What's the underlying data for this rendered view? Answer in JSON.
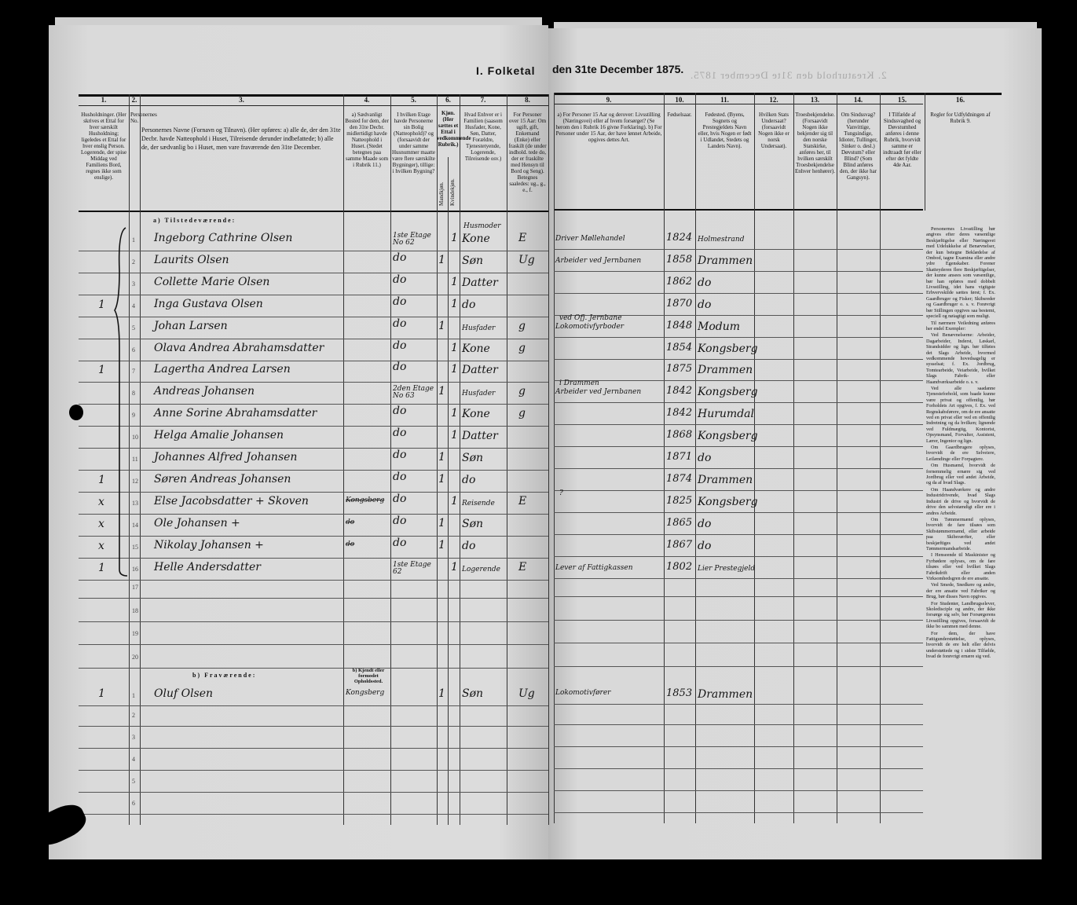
{
  "header": {
    "title_left": "I. Folketal",
    "title_right": "den 31te December 1875.",
    "ghost_text": "2. Kreaturhold den 31te December 1875."
  },
  "columns": [
    {
      "num": "1.",
      "text": "Husholdninger. (Her skrives et Ettal for hver særskilt Husholdning; ligeledes et Ettal for hver enslig Person. Logerende, der spise Middag ved Familiens Bord, regnes ikke som enslige)."
    },
    {
      "num": "2.",
      "text": "Personernes No."
    },
    {
      "num": "3.",
      "text": "Personernes Navne (Fornavn og Tilnavn). (Her opføres: a) alle de, der den 31te Decbr. havde Natteophold i Huset, Tilreisende derunder indbefattede; b) alle de, der sædvanlig bo i Huset, men vare fraværende den 31te December."
    },
    {
      "num": "4.",
      "text": "a) Sædvanligt Bosted for dem, der den 31te Decbr. midlertidigt havde Natteophold i Huset. (Stedet betegnes paa samme Maade som i Rubrik 11.)"
    },
    {
      "num": "5.",
      "text": "I hvilken Etage havde Personerne sin Bolig (Natteophold)? og (forsaavidt der under samme Husnummer maatte være flere særskilte Bygninger), tillige: i hvilken Bygning?"
    },
    {
      "num": "6.",
      "text": "Kjøn. (Her sættes et Ettal i vedkommende Rubrik.)",
      "sub": [
        "Mandkjøn.",
        "Kvindekjøn."
      ]
    },
    {
      "num": "7.",
      "text": "Hvad Enhver er i Familien (saasom Husfader, Kone, Søn, Datter, Forældre, Tjenestetyende, Logerende, Tilreisende osv.)"
    },
    {
      "num": "8.",
      "text": "For Personer over 15 Aar: Om ugift, gift, Enkemand (Enke) eller fraskilt (de under indhold. tede do, der er fraskilte med Hensyn til Bord og Seng). Betegnes saaledes: ug., g., e., f."
    },
    {
      "num": "9.",
      "text": "a) For Personer 15 Aar og derover: Livsstilling (Næringsvei) eller af hvem forsørget? (Se herom den i Rubrik 16 givne Forklaring). b) For Personer under 15 Aar, der have lønnet Arbeide, opgives dettes Art."
    },
    {
      "num": "10.",
      "text": "Fødselsaar."
    },
    {
      "num": "11.",
      "text": "Fødested. (Byens, Sognets og Prestegjeldets Navn eller, hvis Nogen er født i Udlandet, Stedets og Landets Navn)."
    },
    {
      "num": "12.",
      "text": "Hvilken Stats Undersaat? (forsaavidt Nogen ikke er norsk Undersaat)."
    },
    {
      "num": "13.",
      "text": "Troesbekjendelse. (Forsaavidt Nogen ikke bekjender sig til den norske Statskirke, anføres her, til hvilken særskilt Troesbekjendelse Enhver henhører)."
    },
    {
      "num": "14.",
      "text": "Om Sindssvag? (herunder Vanvittige, Tungsindige, Idioter, Tullinger, Sinker o. desl.) Døvstum? eller Blind? (Som Blind anføres den, der ikke har Gangsyn)."
    },
    {
      "num": "15.",
      "text": "I Tilfælde af Sindssvaghed og Døvstumhed anføres i denne Rubrik, hvorvidt samme er indtraadt før eller efter det fyldte 4de Aar."
    },
    {
      "num": "16.",
      "text": "Regler for Udfyldningen af Rubrik 9."
    }
  ],
  "sections": {
    "present": "a) Tilstedeværende:",
    "absent": "b) Fraværende:",
    "absent_col4": "b) Kjendt eller formodet Opholdssted."
  },
  "rows": [
    {
      "no": "1",
      "hh": "",
      "name": "Ingeborg Cathrine Olsen",
      "bosted": "",
      "etage": "1ste Etage No 62",
      "male": "",
      "female": "1",
      "role": "Kone",
      "role_note": "Husmoder",
      "civil": "E",
      "occupation": "Driver Møllehandel",
      "occ_note": "",
      "year": "1824",
      "place": "Holmestrand"
    },
    {
      "no": "2",
      "hh": "",
      "name": "Laurits Olsen",
      "bosted": "",
      "etage": "do",
      "male": "1",
      "female": "",
      "role": "Søn",
      "role_note": "",
      "civil": "Ug",
      "occupation": "Arbeider ved Jernbanen",
      "occ_note": "",
      "year": "1858",
      "place": "Drammen"
    },
    {
      "no": "3",
      "hh": "",
      "name": "Collette Marie Olsen",
      "bosted": "",
      "etage": "do",
      "male": "",
      "female": "1",
      "role": "Datter",
      "role_note": "",
      "civil": "",
      "occupation": "",
      "occ_note": "",
      "year": "1862",
      "place": "do"
    },
    {
      "no": "4",
      "hh": "1",
      "name": "Inga Gustava Olsen",
      "bosted": "",
      "etage": "do",
      "male": "",
      "female": "1",
      "role": "do",
      "role_note": "",
      "civil": "",
      "occupation": "",
      "occ_note": "",
      "year": "1870",
      "place": "do"
    },
    {
      "no": "5",
      "hh": "",
      "name": "Johan Larsen",
      "bosted": "",
      "etage": "do",
      "male": "1",
      "female": "",
      "role": "Husfader",
      "role_note": "",
      "civil": "g",
      "occupation": "Lokomotivfyrboder",
      "occ_note": "ved Ofj. Jernbane",
      "year": "1848",
      "place": "Modum"
    },
    {
      "no": "6",
      "hh": "",
      "name": "Olava Andrea Abrahamsdatter",
      "bosted": "",
      "etage": "do",
      "male": "",
      "female": "1",
      "role": "Kone",
      "role_note": "",
      "civil": "g",
      "occupation": "",
      "occ_note": "",
      "year": "1854",
      "place": "Kongsberg"
    },
    {
      "no": "7",
      "hh": "1",
      "name": "Lagertha Andrea Larsen",
      "bosted": "",
      "etage": "do",
      "male": "",
      "female": "1",
      "role": "Datter",
      "role_note": "",
      "civil": "",
      "occupation": "",
      "occ_note": "",
      "year": "1875",
      "place": "Drammen"
    },
    {
      "no": "8",
      "hh": "",
      "name": "Andreas Johansen",
      "bosted": "",
      "etage": "2den Etage No 63",
      "male": "1",
      "female": "",
      "role": "Husfader",
      "role_note": "",
      "civil": "g",
      "occupation": "Arbeider ved Jernbanen",
      "occ_note": "i Drammen",
      "year": "1842",
      "place": "Kongsberg"
    },
    {
      "no": "9",
      "hh": "",
      "name": "Anne Sorine Abrahamsdatter",
      "bosted": "",
      "etage": "do",
      "male": "",
      "female": "1",
      "role": "Kone",
      "role_note": "",
      "civil": "g",
      "occupation": "",
      "occ_note": "",
      "year": "1842",
      "place": "Hurumdal"
    },
    {
      "no": "10",
      "hh": "",
      "name": "Helga Amalie Johansen",
      "bosted": "",
      "etage": "do",
      "male": "",
      "female": "1",
      "role": "Datter",
      "role_note": "",
      "civil": "",
      "occupation": "",
      "occ_note": "",
      "year": "1868",
      "place": "Kongsberg"
    },
    {
      "no": "11",
      "hh": "",
      "name": "Johannes Alfred Johansen",
      "bosted": "",
      "etage": "do",
      "male": "1",
      "female": "",
      "role": "Søn",
      "role_note": "",
      "civil": "",
      "occupation": "",
      "occ_note": "",
      "year": "1871",
      "place": "do"
    },
    {
      "no": "12",
      "hh": "1",
      "name": "Søren Andreas Johansen",
      "bosted": "",
      "etage": "do",
      "male": "1",
      "female": "",
      "role": "do",
      "role_note": "",
      "civil": "",
      "occupation": "",
      "occ_note": "",
      "year": "1874",
      "place": "Drammen"
    },
    {
      "no": "13",
      "hh": "x",
      "name": "Else Jacobsdatter + Skoven",
      "bosted": "Kongsberg",
      "etage": "do",
      "male": "",
      "female": "1",
      "role": "Reisende",
      "role_note": "",
      "civil": "E",
      "occupation": "",
      "occ_note": "?",
      "year": "1825",
      "place": "Kongsberg"
    },
    {
      "no": "14",
      "hh": "x",
      "name": "Ole Johansen +",
      "bosted": "do",
      "etage": "do",
      "male": "1",
      "female": "",
      "role": "Søn",
      "role_note": "",
      "civil": "",
      "occupation": "",
      "occ_note": "",
      "year": "1865",
      "place": "do"
    },
    {
      "no": "15",
      "hh": "x",
      "name": "Nikolay Johansen +",
      "bosted": "do",
      "etage": "do",
      "male": "1",
      "female": "",
      "role": "do",
      "role_note": "",
      "civil": "",
      "occupation": "",
      "occ_note": "",
      "year": "1867",
      "place": "do"
    },
    {
      "no": "16",
      "hh": "1",
      "name": "Helle Andersdatter",
      "bosted": "",
      "etage": "1ste Etage 62",
      "male": "",
      "female": "1",
      "role": "Logerende",
      "role_note": "",
      "civil": "E",
      "occupation": "Lever af Fattigkassen",
      "occ_note": "",
      "year": "1802",
      "place": "Lier Prestegjeld"
    }
  ],
  "empty_row_numbers": [
    "17",
    "18",
    "19",
    "20"
  ],
  "absent_rows": [
    {
      "no": "1",
      "hh": "1",
      "name": "Oluf Olsen",
      "bosted": "Kongsberg",
      "etage": "",
      "male": "1",
      "female": "",
      "role": "Søn",
      "civil": "Ug",
      "occupation": "Lokomotivfører",
      "year": "1853",
      "place": "Drammen"
    }
  ],
  "absent_empty_numbers": [
    "2",
    "3",
    "4",
    "5",
    "6"
  ],
  "rules_text": [
    "Personernes Livsstilling bør angives efter deres væsentlige Beskjæftigelse eller Næringsvei med Udelukkelse af Benævnelser, der kun betegne Beklædelse af Ombod, tagne Examina eller andre ydre Egenskaber. Forener Skatteyderen flere Beskjæftigelser, der kunne ansees som væsentlige, bør han opføres med dobbelt Livsstilling, idet hans vigtigste Erhvervskilde sættes først; f. Ex. Gaardbruger og Fisker; Skibsreder og Gaardbruger o. s. v. Forøvrigt bør Stillingen opgives saa bestemt, speciell og nøiagtigt som muligt.",
    "Til nærmere Veiledning anføres her endel Exempler:",
    "Ved Benævnelserne: Arbeider, Dagarbeider, Inderst, Løskarl, Strandsidder og lign. bør tilføies det Slags Arbeide, hvormed vedkommende hovedsagelig er sysselsat; f. Ex. Jordbrug, Tomtearbeide, Veiarbeide, hvilket Slags Fabrik- eller Haandværksarbeide o. s. v.",
    "Ved alle saadanne Tjenesteforhold, som baade kunne være privat og offentlig, bør Forholdets Art opgives, f. Ex. ved Regnskabsførere, om de ere ansatte ved en privat eller ved en offentlig Indretning og da hvilken; lignende ved Fuldmægtig, Kontorist, Opsynsmand, Forvalter, Assistent, Lærer, Ingenior og lign.",
    "Om Gaardbrugere oplyses, hvorvidt de ere Selveiere, Leilændinge eller Forpagtere.",
    "Om Husmænd, hvorvidt de fornemmelig ernære sig ved Jordbrug eller ved andet Arbeide, og da af hvad Slags.",
    "Om Haandværkere og andre Industridrivende, hvad Slags Industri de drive og hvorvidt de drive den selvstændigt eller ere i andres Arbeide.",
    "Om Tømmermænd oplyses, hvorvidt de fare tilsøes som Skibstømmermænd, eller arbeide paa Skibsværfter, eller beskjæftiges ved andet Tømmermandsarbeide.",
    "I Henseende til Maskinister og Fyrbødere oplyses, om de fare tilsøes eller ved hvilket Slags Fabrikdrift eller anden Virksomhedsgren de ere ansatte.",
    "Ved Smede, Snedkere og andre, der ere ansatte ved Fabriker og Brug, bør disses Navn opgives.",
    "For Studenter, Landbrugselever, Skoledisciple og andre, der ikke forsørge sig selv, bør Forsørgerens Livsstilling opgives, forsaavidt de ikke bo sammen med denne.",
    "For dem, der have Fattigunderstøttelse, oplyses, hvorvidt de ere helt eller delvis understøttede og i sidste Tilfælde, hvad de forøvrigt ernære sig ved."
  ],
  "colors": {
    "paper": "#d9d9d9",
    "ink": "#151515",
    "background": "#000000"
  }
}
